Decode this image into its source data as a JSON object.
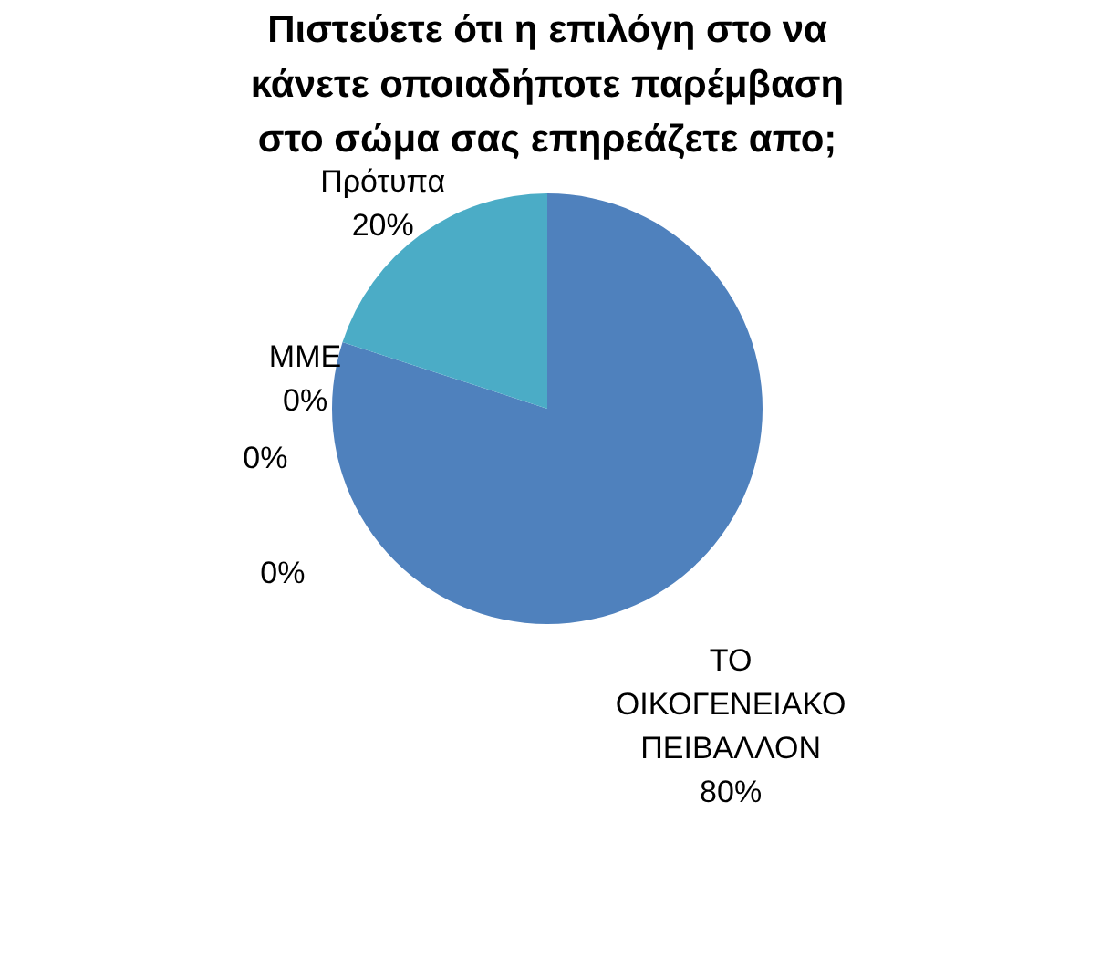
{
  "chart_data": {
    "type": "pie",
    "title": "Πιστεύετε ότι η επιλόγη στο να κάνετε οποιαδήποτε παρέμβαση στο σώμα σας επηρεάζετε απο;",
    "categories": [
      "ΤΟ ΟΙΚΟΓΕΝΕΙΑΚΟ ΠΕΙΒΑΛΛΟΝ",
      null,
      null,
      "ΜΜΕ",
      "Πρότυπα"
    ],
    "values": [
      80,
      0,
      0,
      0,
      20
    ],
    "value_labels": [
      "80%",
      "0%",
      "0%",
      "0%",
      "20%"
    ],
    "colors": [
      "#4f81bd",
      "#c0504d",
      "#9bbb59",
      "#8064a2",
      "#4bacc6"
    ]
  }
}
